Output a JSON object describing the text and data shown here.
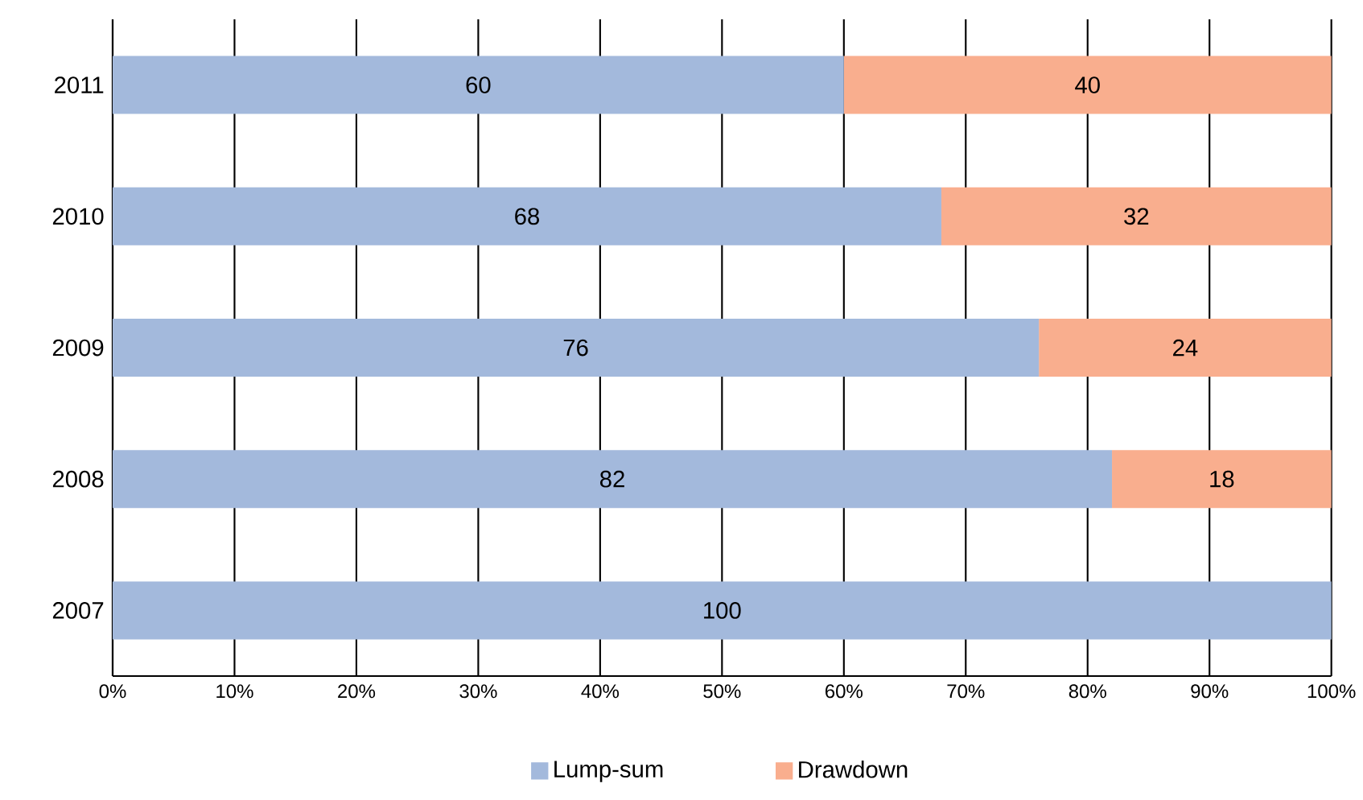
{
  "chart_data": {
    "type": "bar",
    "orientation": "horizontal",
    "stacked": true,
    "categories": [
      "2011",
      "2010",
      "2009",
      "2008",
      "2007"
    ],
    "series": [
      {
        "name": "Lump-sum",
        "color": "#a3b9dc",
        "values": [
          60,
          68,
          76,
          82,
          100
        ]
      },
      {
        "name": "Drawdown",
        "color": "#f9ae8e",
        "values": [
          40,
          32,
          24,
          18,
          null
        ]
      }
    ],
    "xlim": [
      0,
      100
    ],
    "xticks": [
      {
        "value": 0,
        "label": "0%"
      },
      {
        "value": 10,
        "label": "10%"
      },
      {
        "value": 20,
        "label": "20%"
      },
      {
        "value": 30,
        "label": "30%"
      },
      {
        "value": 40,
        "label": "40%"
      },
      {
        "value": 50,
        "label": "50%"
      },
      {
        "value": 60,
        "label": "60%"
      },
      {
        "value": 70,
        "label": "70%"
      },
      {
        "value": 80,
        "label": "80%"
      },
      {
        "value": 90,
        "label": "90%"
      },
      {
        "value": 100,
        "label": "100%"
      }
    ],
    "grid": "x",
    "data_labels": true,
    "legend": "bottom"
  }
}
